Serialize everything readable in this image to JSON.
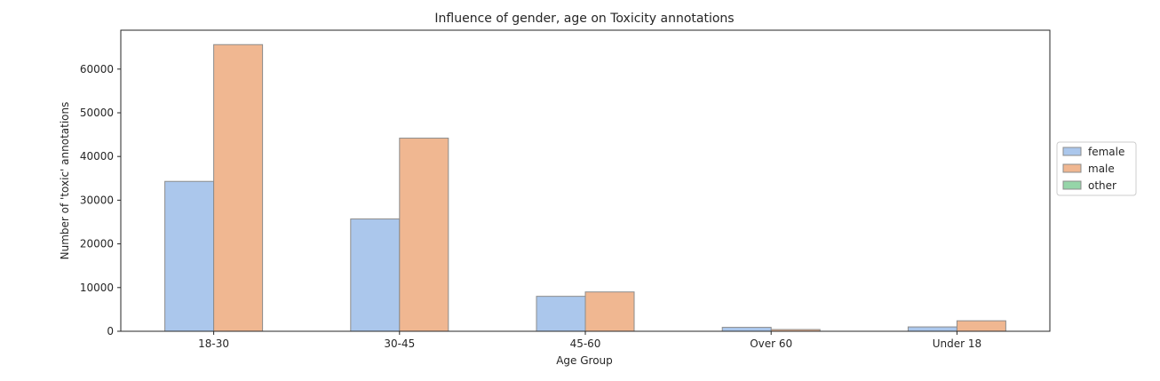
{
  "chart_data": {
    "type": "bar",
    "title": "Influence of gender, age on Toxicity annotations",
    "xlabel": "Age Group",
    "ylabel": "Number of 'toxic' annotations",
    "categories": [
      "18-30",
      "30-45",
      "45-60",
      "Over 60",
      "Under 18"
    ],
    "series": [
      {
        "name": "female",
        "color": "#abc7ec",
        "values": [
          34300,
          25700,
          8000,
          900,
          1000
        ]
      },
      {
        "name": "male",
        "color": "#f0b791",
        "values": [
          65600,
          44200,
          9000,
          400,
          2400
        ]
      },
      {
        "name": "other",
        "color": "#95d5a8",
        "values": [
          0,
          0,
          0,
          0,
          0
        ]
      }
    ],
    "ylim": [
      0,
      68900
    ],
    "yticks": [
      0,
      10000,
      20000,
      30000,
      40000,
      50000,
      60000
    ],
    "grid": false,
    "legend": "right, outside"
  }
}
